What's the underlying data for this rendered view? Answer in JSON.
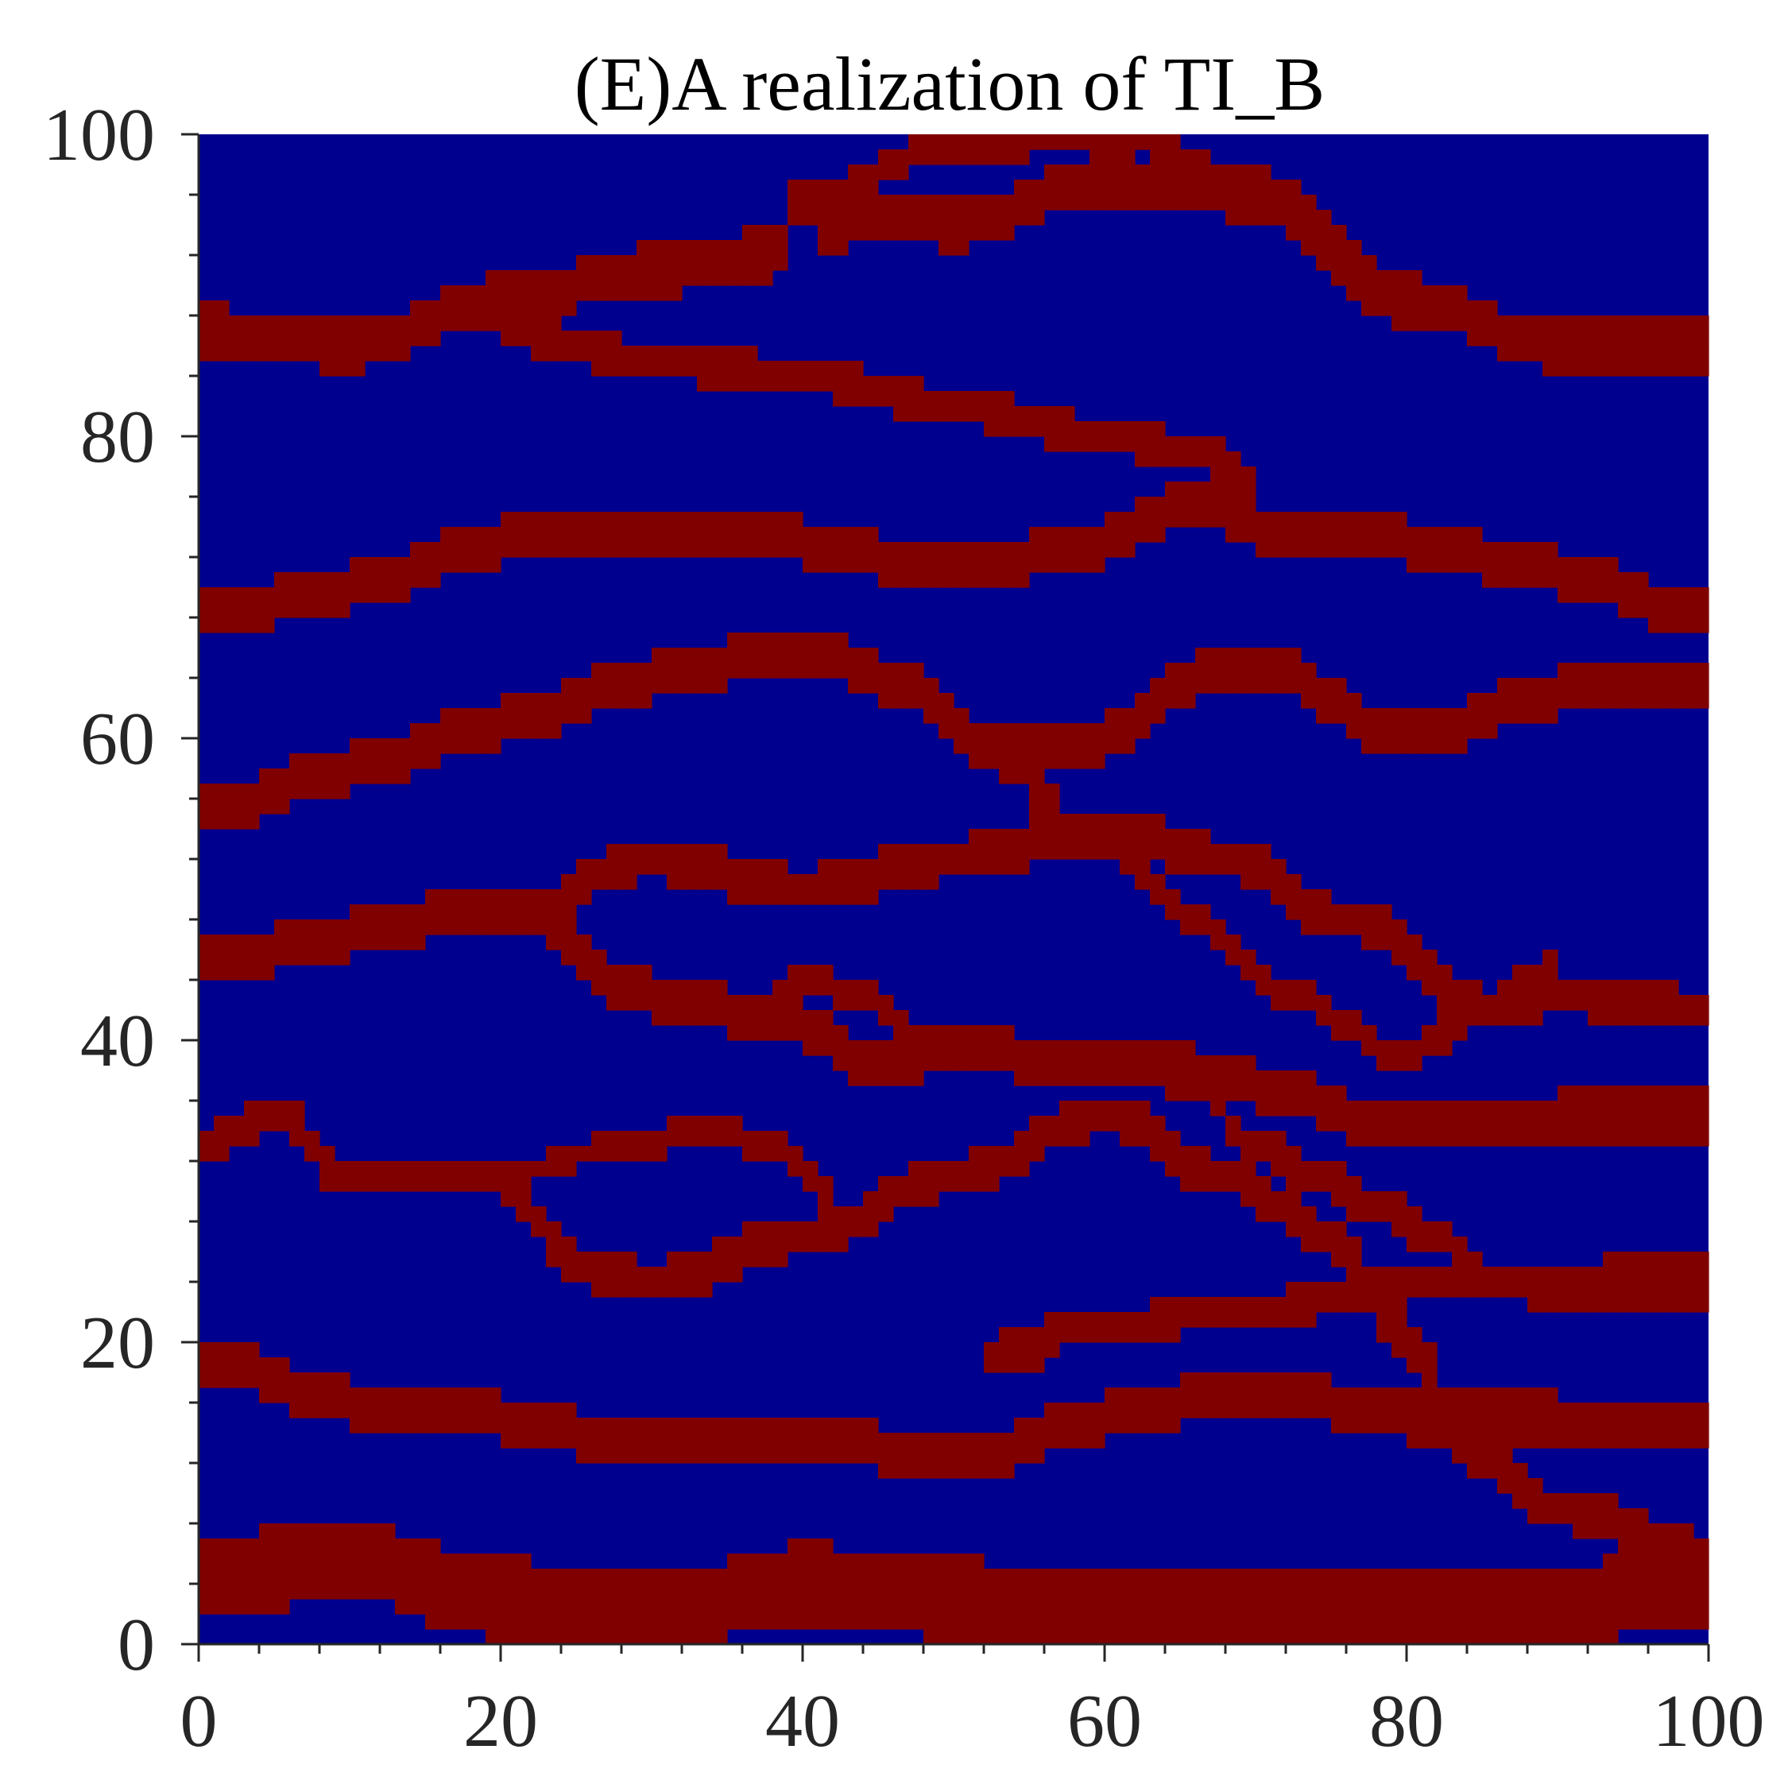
{
  "chart_data": {
    "type": "heatmap",
    "title": "(E)A realization of TI_B",
    "xlabel": "",
    "ylabel": "",
    "xlim": [
      0,
      100
    ],
    "ylim": [
      0,
      100
    ],
    "x_ticks": [
      "0",
      "20",
      "40",
      "60",
      "80",
      "100"
    ],
    "y_ticks": [
      "0",
      "20",
      "40",
      "60",
      "80",
      "100"
    ],
    "grid": false,
    "colors": {
      "background": "#00008F",
      "channel": "#800000"
    },
    "categories": [
      "background",
      "channel"
    ],
    "channels": [
      {
        "x": [
          0,
          10,
          20,
          30,
          40,
          50,
          60,
          70,
          80,
          90,
          100
        ],
        "y": [
          4.5,
          5.5,
          3.0,
          2.0,
          4.0,
          3.0,
          2.0,
          2.5,
          2.0,
          2.5,
          4.0
        ],
        "w": 2.6
      },
      {
        "x": [
          0,
          10,
          20,
          30,
          40,
          50,
          60,
          70,
          80,
          90,
          100
        ],
        "y": [
          19,
          16,
          15,
          13,
          14,
          12,
          15,
          17,
          15,
          15,
          14
        ],
        "w": 1.5
      },
      {
        "x": [
          52,
          55,
          58,
          62,
          66,
          70,
          76,
          82,
          90,
          100
        ],
        "y": [
          19,
          19.5,
          21,
          21,
          22,
          22,
          23,
          24,
          24,
          25
        ],
        "w": 1.3
      },
      {
        "x": [
          0,
          5,
          10,
          20,
          25,
          30,
          40,
          50,
          60,
          68,
          75,
          80,
          85,
          90,
          100
        ],
        "y": [
          33,
          35,
          31,
          31,
          25,
          24,
          27,
          31,
          35,
          31,
          27,
          20,
          12,
          9,
          6
        ],
        "w": 1.4
      },
      {
        "x": [
          20,
          28,
          34,
          38,
          42
        ],
        "y": [
          31,
          33,
          34,
          33,
          30
        ],
        "w": 0.9
      },
      {
        "x": [
          0,
          10,
          20,
          30,
          40,
          45,
          50,
          58,
          62,
          70,
          80,
          90,
          100
        ],
        "y": [
          45,
          47,
          49,
          43,
          41,
          38,
          40,
          38,
          39,
          37,
          34,
          35,
          35
        ],
        "w": 1.5
      },
      {
        "x": [
          36,
          40,
          44,
          48
        ],
        "y": [
          41,
          44,
          43,
          40
        ],
        "w": 0.9
      },
      {
        "x": [
          62,
          66,
          70,
          74,
          78,
          82,
          86,
          92,
          100
        ],
        "y": [
          39,
          37,
          33,
          31,
          29,
          27,
          24,
          23,
          23
        ],
        "w": 1.2
      },
      {
        "x": [
          20,
          30,
          40,
          50,
          60,
          68,
          76,
          86,
          90,
          100
        ],
        "y": [
          48,
          52,
          50,
          52,
          54,
          52,
          48,
          42,
          43,
          42
        ],
        "w": 1.4
      },
      {
        "x": [
          0,
          10,
          20,
          30,
          40,
          48,
          52,
          60,
          66,
          70,
          80,
          90,
          100
        ],
        "y": [
          55,
          58,
          61,
          64,
          66,
          63,
          59,
          60,
          64,
          65,
          60,
          63,
          64
        ],
        "w": 1.5
      },
      {
        "x": [
          52,
          60,
          66,
          72,
          80,
          85,
          90
        ],
        "y": [
          59,
          53,
          48,
          43,
          39,
          42,
          45
        ],
        "w": 1.1
      },
      {
        "x": [
          0,
          10,
          20,
          30,
          40,
          50,
          60,
          66,
          70,
          80,
          90,
          100
        ],
        "y": [
          68,
          70,
          73,
          74,
          73,
          71,
          73,
          76,
          74,
          73,
          71,
          68
        ],
        "w": 1.5
      },
      {
        "x": [
          20,
          30,
          40,
          50,
          60,
          66,
          70
        ],
        "y": [
          87,
          85,
          84,
          82,
          80,
          79,
          77
        ],
        "w": 1.3
      },
      {
        "x": [
          0,
          10,
          20,
          30,
          38,
          40,
          42,
          44,
          50,
          60,
          70,
          80,
          90,
          100
        ],
        "y": [
          87,
          86,
          89,
          91,
          92,
          96,
          93,
          95,
          94,
          97,
          96,
          89,
          86,
          86
        ],
        "w": 1.6
      },
      {
        "x": [
          40,
          50,
          60,
          70
        ],
        "y": [
          96,
          99,
          100,
          97
        ],
        "w": 1.0
      }
    ]
  }
}
